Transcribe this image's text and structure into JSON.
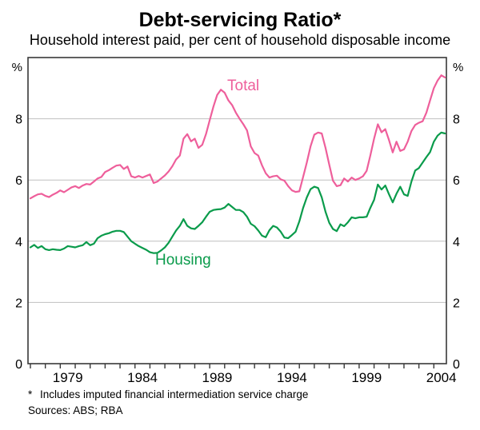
{
  "title": "Debt-servicing Ratio*",
  "subtitle": "Household interest paid, per cent of household disposable income",
  "footnote_marker": "*",
  "footnote": "Includes imputed financial intermediation service charge",
  "sources": "Sources: ABS; RBA",
  "axis": {
    "unit_left": "%",
    "unit_right": "%",
    "y_tick_labels": [
      "0",
      "2",
      "4",
      "6",
      "8"
    ],
    "x_tick_labels": [
      "1979",
      "1984",
      "1989",
      "1994",
      "1999",
      "2004"
    ]
  },
  "colors": {
    "total_line": "#ee5f9b",
    "housing_line": "#0a9b4b",
    "gridline": "#bfbfbf",
    "axis_frame": "#383838"
  },
  "chart_data": {
    "type": "line",
    "title": "Debt-servicing Ratio*",
    "subtitle": "Household interest paid, per cent of household disposable income",
    "xlabel": "",
    "ylabel": "%",
    "grid": true,
    "xlim": [
      1976.84,
      2004.84
    ],
    "ylim": [
      0,
      10
    ],
    "y_gridlines": [
      2,
      4,
      6,
      8
    ],
    "y_ticks": [
      0,
      2,
      4,
      6,
      8
    ],
    "x_label_years": [
      1979,
      1984,
      1989,
      1994,
      1999,
      2004
    ],
    "x_minor_tick_years_start": 1977,
    "x_minor_tick_years_end": 2004,
    "x_start_year": 1977,
    "x_step_years": 0.25,
    "series": [
      {
        "name": "Total",
        "color": "#ee5f9b",
        "values": [
          5.4,
          5.47,
          5.53,
          5.55,
          5.48,
          5.44,
          5.52,
          5.58,
          5.66,
          5.6,
          5.68,
          5.76,
          5.8,
          5.74,
          5.82,
          5.87,
          5.85,
          5.95,
          6.05,
          6.1,
          6.26,
          6.32,
          6.4,
          6.47,
          6.49,
          6.36,
          6.44,
          6.12,
          6.08,
          6.13,
          6.08,
          6.13,
          6.18,
          5.9,
          5.95,
          6.05,
          6.15,
          6.28,
          6.45,
          6.67,
          6.8,
          7.35,
          7.5,
          7.26,
          7.35,
          7.05,
          7.15,
          7.5,
          7.95,
          8.4,
          8.78,
          8.95,
          8.85,
          8.6,
          8.45,
          8.2,
          8.0,
          7.82,
          7.62,
          7.1,
          6.88,
          6.8,
          6.48,
          6.22,
          6.08,
          6.12,
          6.14,
          6.02,
          5.98,
          5.8,
          5.66,
          5.61,
          5.63,
          6.1,
          6.57,
          7.1,
          7.48,
          7.55,
          7.52,
          7.05,
          6.5,
          5.98,
          5.8,
          5.83,
          6.05,
          5.95,
          6.08,
          6.0,
          6.05,
          6.12,
          6.3,
          6.8,
          7.35,
          7.82,
          7.56,
          7.66,
          7.3,
          6.9,
          7.25,
          6.95,
          7.0,
          7.25,
          7.6,
          7.8,
          7.87,
          7.92,
          8.2,
          8.6,
          9.0,
          9.25,
          9.42,
          9.35
        ]
      },
      {
        "name": "Housing",
        "color": "#0a9b4b",
        "values": [
          3.8,
          3.88,
          3.78,
          3.84,
          3.74,
          3.71,
          3.74,
          3.72,
          3.71,
          3.76,
          3.84,
          3.82,
          3.8,
          3.84,
          3.87,
          3.97,
          3.87,
          3.92,
          4.1,
          4.18,
          4.23,
          4.26,
          4.31,
          4.34,
          4.34,
          4.3,
          4.15,
          4.0,
          3.92,
          3.84,
          3.78,
          3.72,
          3.64,
          3.61,
          3.62,
          3.7,
          3.8,
          3.95,
          4.15,
          4.35,
          4.5,
          4.72,
          4.5,
          4.42,
          4.4,
          4.5,
          4.62,
          4.8,
          4.96,
          5.02,
          5.04,
          5.05,
          5.1,
          5.22,
          5.12,
          5.02,
          5.02,
          4.95,
          4.8,
          4.57,
          4.49,
          4.35,
          4.18,
          4.13,
          4.36,
          4.5,
          4.45,
          4.31,
          4.12,
          4.1,
          4.2,
          4.31,
          4.65,
          5.09,
          5.43,
          5.7,
          5.78,
          5.74,
          5.43,
          4.96,
          4.6,
          4.4,
          4.33,
          4.55,
          4.49,
          4.62,
          4.78,
          4.75,
          4.78,
          4.78,
          4.8,
          5.09,
          5.35,
          5.85,
          5.69,
          5.82,
          5.53,
          5.27,
          5.55,
          5.78,
          5.53,
          5.48,
          5.95,
          6.31,
          6.39,
          6.57,
          6.75,
          6.91,
          7.25,
          7.45,
          7.55,
          7.52
        ]
      }
    ],
    "annotations": [
      {
        "text": "Total",
        "series": "Total"
      },
      {
        "text": "Housing",
        "series": "Housing"
      }
    ]
  }
}
